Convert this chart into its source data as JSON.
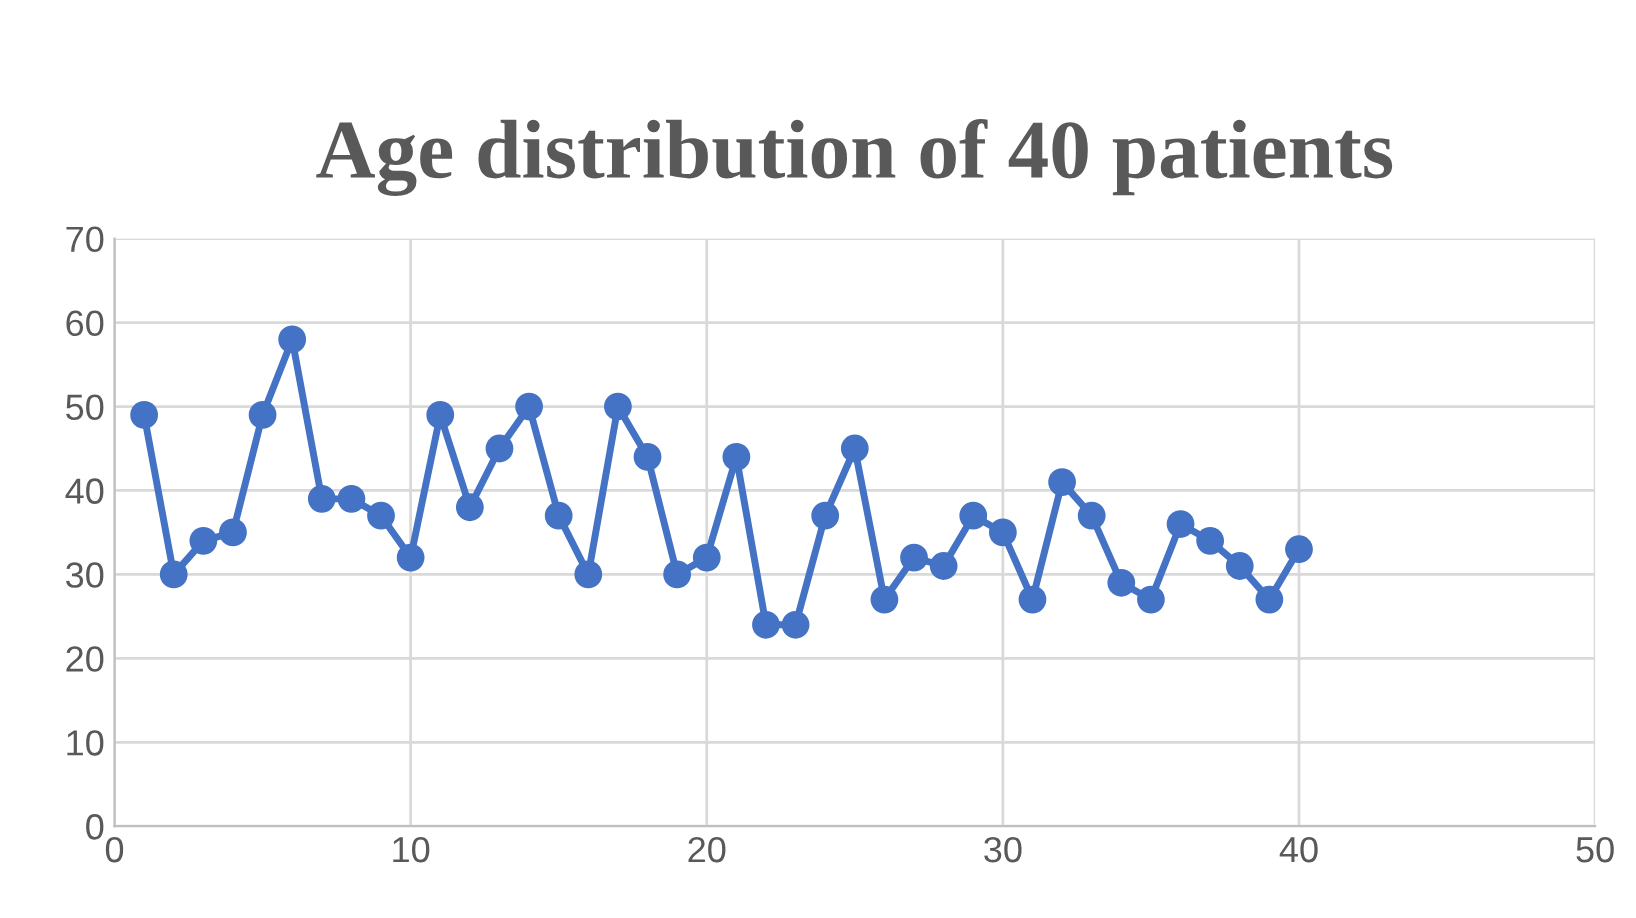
{
  "chart_data": {
    "type": "line",
    "title": "Age distribution of 40 patients",
    "x": [
      1,
      2,
      3,
      4,
      5,
      6,
      7,
      8,
      9,
      10,
      11,
      12,
      13,
      14,
      15,
      16,
      17,
      18,
      19,
      20,
      21,
      22,
      23,
      24,
      25,
      26,
      27,
      28,
      29,
      30,
      31,
      32,
      33,
      34,
      35,
      36,
      37,
      38,
      39,
      40
    ],
    "series": [
      {
        "color": "#4472c4",
        "values": [
          49,
          30,
          34,
          35,
          49,
          58,
          39,
          39,
          37,
          32,
          49,
          38,
          45,
          50,
          37,
          30,
          50,
          44,
          30,
          32,
          44,
          24,
          24,
          37,
          45,
          27,
          32,
          31,
          37,
          35,
          27,
          41,
          37,
          29,
          27,
          36,
          34,
          31,
          27,
          33
        ]
      }
    ],
    "xlim": [
      0,
      50
    ],
    "xticks": [
      0,
      10,
      20,
      30,
      40,
      50
    ],
    "ylim": [
      0,
      70
    ],
    "yticks": [
      0,
      10,
      20,
      30,
      40,
      50,
      60,
      70
    ],
    "grid": true,
    "marker": "circle",
    "line_style": "solid"
  }
}
